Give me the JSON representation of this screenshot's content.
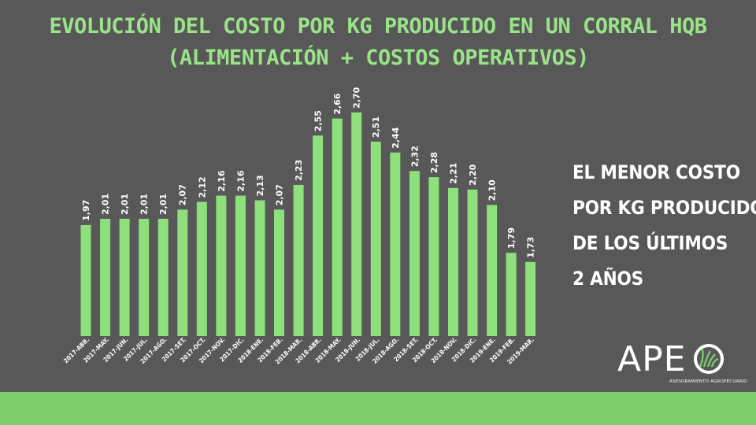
{
  "title_line1": "EVOLUCIÓN DEL COSTO POR KG PRODUCIDO EN UN CORRAL HQB",
  "title_line2": "(ALIMENTACIÓN + COSTOS OPERATIVOS)",
  "side_note": [
    "EL MENOR COSTO",
    "POR KG PRODUCIDO",
    "DE LOS ÚLTIMOS",
    "2 AÑOS"
  ],
  "logo": {
    "text": "APE",
    "subtitle": "ASESORAMIENTO AGROPECUARIO"
  },
  "colors": {
    "background": "#585858",
    "bar": "#8ee07c",
    "title": "#9be38a",
    "footer": "#7fcf6f"
  },
  "chart_data": {
    "type": "bar",
    "title": "EVOLUCIÓN DEL COSTO POR KG PRODUCIDO EN UN CORRAL HQB (ALIMENTACIÓN + COSTOS OPERATIVOS)",
    "categories": [
      "2017-ABR.",
      "2017-MAY.",
      "2017-JUN.",
      "2017-JUL.",
      "2017-AGO.",
      "2017-SET.",
      "2017-OCT.",
      "2017-NOV.",
      "2017-DIC.",
      "2018-ENE.",
      "2018-FEB.",
      "2018-MAR.",
      "2018-ABR.",
      "2018-MAY.",
      "2018-JUN.",
      "2018-JUL.",
      "2018-AGO.",
      "2018-SET.",
      "2018-OCT.",
      "2018-NOV.",
      "2018-DIC.",
      "2019-ENE.",
      "2019-FEB.",
      "2019-MAR."
    ],
    "values": [
      1.97,
      2.01,
      2.01,
      2.01,
      2.01,
      2.07,
      2.12,
      2.16,
      2.16,
      2.13,
      2.07,
      2.23,
      2.55,
      2.66,
      2.7,
      2.51,
      2.44,
      2.32,
      2.28,
      2.21,
      2.2,
      2.1,
      1.79,
      1.73
    ],
    "value_labels": [
      "1,97",
      "2,01",
      "2,01",
      "2,01",
      "2,01",
      "2,07",
      "2,12",
      "2,16",
      "2,16",
      "2,13",
      "2,07",
      "2,23",
      "2,55",
      "2,66",
      "2,70",
      "2,51",
      "2,44",
      "2,32",
      "2,28",
      "2,21",
      "2,20",
      "2,10",
      "1,79",
      "1,73"
    ],
    "xlabel": "",
    "ylabel": "",
    "ylim": [
      1.25,
      2.75
    ],
    "grid": false,
    "legend": "none"
  }
}
